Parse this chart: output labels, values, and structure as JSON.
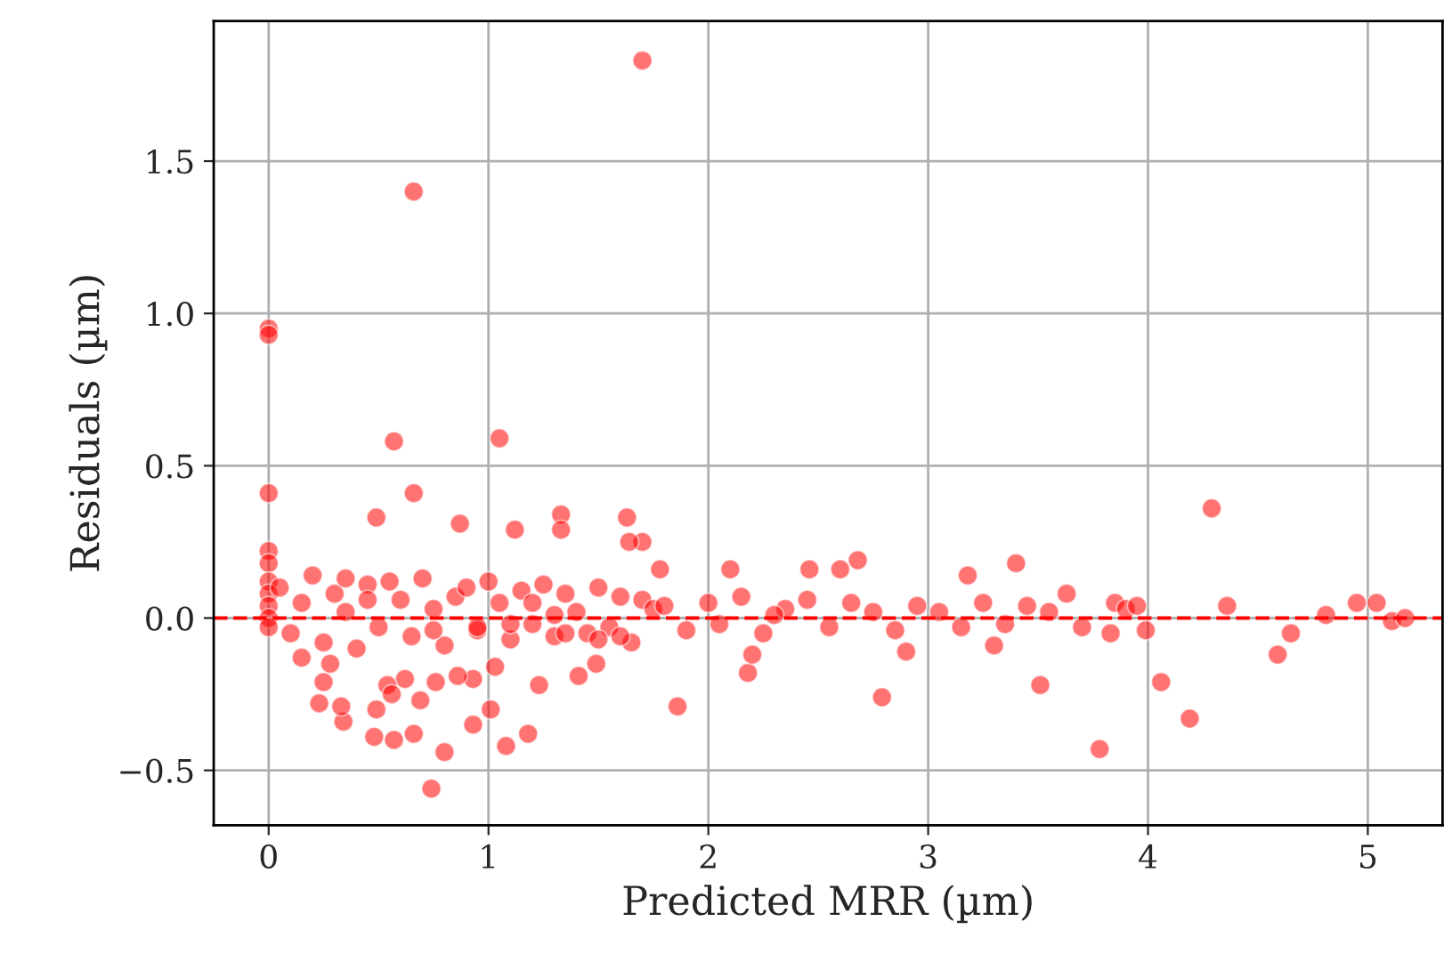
{
  "chart_data": {
    "type": "scatter",
    "xlabel": "Predicted MRR (µm)",
    "ylabel": "Residuals (µm)",
    "xlim": [
      -0.25,
      5.34
    ],
    "ylim": [
      -0.68,
      1.96
    ],
    "xticks": [
      0,
      1,
      2,
      3,
      4,
      5
    ],
    "yticks": [
      {
        "value": -0.5,
        "label": "−0.5"
      },
      {
        "value": 0.0,
        "label": "0.0"
      },
      {
        "value": 0.5,
        "label": "0.5"
      },
      {
        "value": 1.0,
        "label": "1.0"
      },
      {
        "value": 1.5,
        "label": "1.5"
      }
    ],
    "grid": true,
    "marker": "circle",
    "ref_lines": [
      {
        "axis": "y",
        "value": 0,
        "color": "#ff0000",
        "line_style": "dashed"
      }
    ],
    "series": [
      {
        "color": "#ff0000",
        "x": [
          0,
          0,
          0,
          0,
          0,
          0,
          0,
          0,
          0,
          0,
          0.66,
          1.7,
          0.57,
          1.05,
          0.66,
          0.49,
          0.87,
          1.33,
          1.33,
          1.12,
          1.63,
          1.7,
          1.64,
          4.29,
          0.74,
          0.8,
          0.57,
          0.66,
          1.08,
          1.18,
          0.93,
          1.01,
          0.48,
          0.49,
          0.34,
          0.33,
          0.23,
          0.25,
          0.28,
          1.23,
          0.76,
          0.62,
          0.54,
          0.93,
          0.86,
          1.03,
          0.56,
          0.69,
          1.41,
          1.49,
          1.86,
          2.18,
          2.2,
          2.79,
          1.78,
          2.1,
          2.46,
          2.68,
          3.18,
          3.78,
          3.51,
          4.06,
          4.19,
          4.59,
          4.65,
          3.85,
          4.36,
          4.81,
          4.95,
          5.04,
          5.11,
          5.17,
          3.63,
          3.83,
          3.99,
          0.05,
          0.1,
          0.15,
          0.2,
          0.25,
          0.3,
          0.35,
          0.4,
          0.45,
          0.5,
          0.55,
          0.6,
          0.65,
          0.7,
          0.75,
          0.8,
          0.85,
          0.9,
          0.95,
          1.0,
          1.05,
          1.1,
          1.15,
          1.2,
          1.25,
          1.3,
          1.35,
          1.4,
          1.45,
          1.5,
          1.55,
          1.6,
          1.65,
          1.7,
          1.75,
          1.8,
          1.9,
          2.0,
          2.05,
          2.15,
          2.25,
          2.35,
          2.45,
          2.55,
          2.65,
          2.75,
          2.85,
          2.95,
          3.05,
          3.15,
          3.25,
          3.35,
          3.45,
          3.55,
          3.7,
          3.9,
          3.95,
          1.1,
          1.3,
          1.5,
          2.3,
          2.9,
          3.3,
          0.45,
          0.75,
          1.2,
          1.6,
          2.6,
          3.4,
          0.15,
          0.35,
          0.95,
          1.35
        ],
        "values": [
          0.95,
          0.93,
          0.41,
          0.22,
          0.18,
          0.12,
          0.08,
          0.04,
          0.0,
          -0.03,
          1.4,
          1.83,
          0.58,
          0.59,
          0.41,
          0.33,
          0.31,
          0.34,
          0.29,
          0.29,
          0.33,
          0.25,
          0.25,
          0.36,
          -0.56,
          -0.44,
          -0.4,
          -0.38,
          -0.42,
          -0.38,
          -0.35,
          -0.3,
          -0.39,
          -0.3,
          -0.34,
          -0.29,
          -0.28,
          -0.21,
          -0.15,
          -0.22,
          -0.21,
          -0.2,
          -0.22,
          -0.2,
          -0.19,
          -0.16,
          -0.25,
          -0.27,
          -0.19,
          -0.15,
          -0.29,
          -0.18,
          -0.12,
          -0.26,
          0.16,
          0.16,
          0.16,
          0.19,
          0.14,
          -0.43,
          -0.22,
          -0.21,
          -0.33,
          -0.12,
          -0.05,
          0.05,
          0.04,
          0.01,
          0.05,
          0.05,
          -0.01,
          0.0,
          0.08,
          -0.05,
          -0.04,
          0.1,
          -0.05,
          0.05,
          0.14,
          -0.08,
          0.08,
          0.02,
          -0.1,
          0.11,
          -0.03,
          0.12,
          0.06,
          -0.06,
          0.13,
          0.03,
          -0.09,
          0.07,
          0.1,
          -0.04,
          0.12,
          0.05,
          -0.07,
          0.09,
          -0.02,
          0.11,
          -0.06,
          0.08,
          0.02,
          -0.05,
          0.1,
          -0.03,
          0.07,
          -0.08,
          0.06,
          0.03,
          0.04,
          -0.04,
          0.05,
          -0.02,
          0.07,
          -0.05,
          0.03,
          0.06,
          -0.03,
          0.05,
          0.02,
          -0.04,
          0.04,
          0.02,
          -0.03,
          0.05,
          -0.02,
          0.04,
          0.02,
          -0.03,
          0.03,
          0.04,
          -0.02,
          0.01,
          -0.07,
          0.01,
          -0.11,
          -0.09,
          0.06,
          -0.04,
          0.05,
          -0.06,
          0.16,
          0.18,
          -0.13,
          0.13,
          -0.03,
          -0.05
        ]
      }
    ]
  }
}
